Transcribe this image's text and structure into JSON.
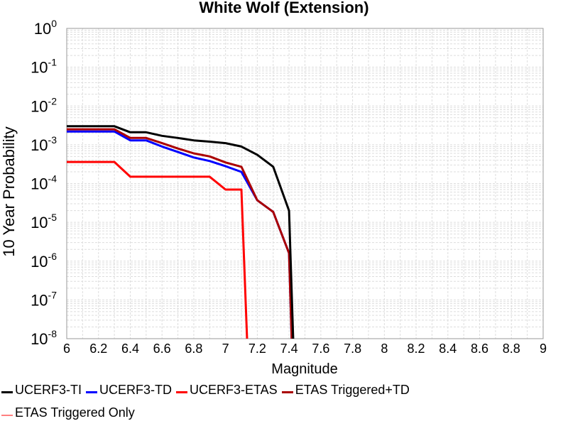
{
  "chart_data": {
    "type": "line",
    "title": "White Wolf (Extension)",
    "xlabel": "Magnitude",
    "ylabel": "10 Year Probability",
    "xlim": [
      6,
      9
    ],
    "ylim": [
      1e-08,
      1
    ],
    "yscale": "log",
    "grid": true,
    "legend_position": "bottom",
    "x_ticks": [
      "6",
      "6.2",
      "6.4",
      "6.6",
      "6.8",
      "7",
      "7.2",
      "7.4",
      "7.6",
      "7.8",
      "8",
      "8.2",
      "8.4",
      "8.6",
      "8.8",
      "9"
    ],
    "y_ticks": [
      {
        "base": "10",
        "exp": "0"
      },
      {
        "base": "10",
        "exp": "-1"
      },
      {
        "base": "10",
        "exp": "-2"
      },
      {
        "base": "10",
        "exp": "-3"
      },
      {
        "base": "10",
        "exp": "-4"
      },
      {
        "base": "10",
        "exp": "-5"
      },
      {
        "base": "10",
        "exp": "-6"
      },
      {
        "base": "10",
        "exp": "-7"
      },
      {
        "base": "10",
        "exp": "-8"
      }
    ],
    "series": [
      {
        "name": "UCERF3-TI",
        "color": "#000000",
        "x": [
          6.0,
          6.3,
          6.4,
          6.5,
          6.6,
          6.7,
          6.8,
          6.9,
          7.0,
          7.1,
          7.2,
          7.3,
          7.4,
          7.43
        ],
        "y": [
          0.003,
          0.003,
          0.0021,
          0.0021,
          0.0017,
          0.0015,
          0.0013,
          0.0012,
          0.0011,
          0.0009,
          0.00055,
          0.00027,
          2e-05,
          1e-09
        ]
      },
      {
        "name": "UCERF3-TD",
        "color": "#0000ff",
        "x": [
          6.0,
          6.3,
          6.4,
          6.5,
          6.6,
          6.7,
          6.8,
          6.9,
          7.0,
          7.1,
          7.2,
          7.3,
          7.4,
          7.42
        ],
        "y": [
          0.0022,
          0.0022,
          0.0013,
          0.0013,
          0.0009,
          0.00065,
          0.00047,
          0.00038,
          0.00028,
          0.0002,
          3.7e-05,
          1.85e-05,
          1.6e-06,
          1e-09
        ]
      },
      {
        "name": "UCERF3-ETAS",
        "color": "#ff0000",
        "x": [
          6.0,
          6.3,
          6.4,
          6.5,
          6.6,
          6.7,
          6.8,
          6.9,
          7.0,
          7.1,
          7.14
        ],
        "y": [
          0.00036,
          0.00036,
          0.00015,
          0.00015,
          0.00015,
          0.00015,
          0.00015,
          0.00015,
          7e-05,
          7e-05,
          1e-09
        ]
      },
      {
        "name": "ETAS Triggered+TD",
        "color": "#aa0000",
        "x": [
          6.0,
          6.3,
          6.4,
          6.5,
          6.6,
          6.7,
          6.8,
          6.9,
          7.0,
          7.1,
          7.2,
          7.3,
          7.4,
          7.42
        ],
        "y": [
          0.0025,
          0.0025,
          0.0015,
          0.0015,
          0.0011,
          0.0008,
          0.0006,
          0.0005,
          0.00035,
          0.00027,
          3.7e-05,
          1.85e-05,
          1.6e-06,
          1e-09
        ]
      },
      {
        "name": "ETAS Triggered Only",
        "color": "#ff8080",
        "x": [],
        "y": []
      }
    ]
  }
}
